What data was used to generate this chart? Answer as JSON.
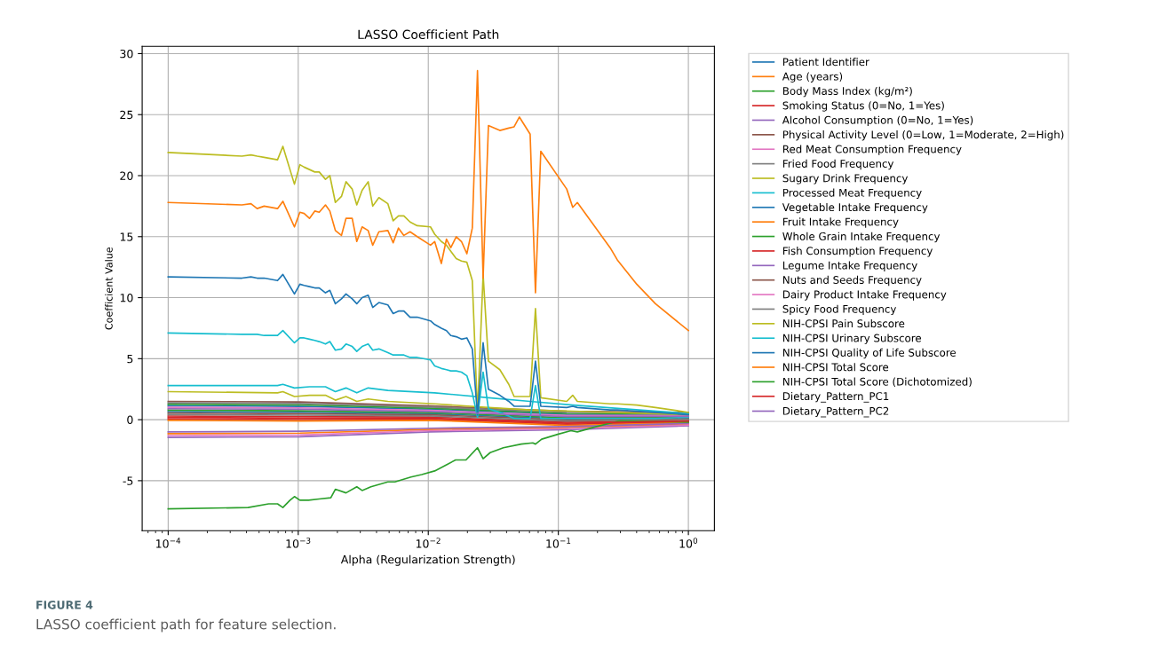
{
  "chart_data": {
    "type": "line",
    "title": "LASSO Coefficient Path",
    "xlabel": "Alpha (Regularization Strength)",
    "ylabel": "Coefficient Value",
    "annotations": [
      "FIGURE 4",
      "LASSO coefficient path for feature selection."
    ],
    "log": "x",
    "grid": true,
    "legend": "right",
    "xlim": [
      6.31e-05,
      1.585
    ],
    "xticks": [
      {
        "value": 0.0001,
        "label": "10$^{−4}$"
      },
      {
        "value": 0.001,
        "label": "10$^{−3}$"
      },
      {
        "value": 0.01,
        "label": "10$^{−2}$"
      },
      {
        "value": 0.1,
        "label": "10$^{−1}$"
      },
      {
        "value": 1,
        "label": "10$^{0}$"
      }
    ],
    "ylim": [
      -9.1,
      30.6
    ],
    "yticks": [
      -5,
      0,
      5,
      10,
      15,
      20,
      25,
      30
    ],
    "x": [
      0.0001,
      0.000369,
      0.000433,
      0.000483,
      0.000547,
      0.000693,
      0.000762,
      0.000935,
      0.00103,
      0.00111,
      0.00122,
      0.00134,
      0.00145,
      0.00162,
      0.00175,
      0.00193,
      0.00215,
      0.00233,
      0.0026,
      0.00282,
      0.0031,
      0.00345,
      0.00374,
      0.00417,
      0.00489,
      0.00537,
      0.0059,
      0.00649,
      0.00724,
      0.00822,
      0.0104,
      0.0112,
      0.0126,
      0.0138,
      0.0149,
      0.0164,
      0.018,
      0.0198,
      0.0218,
      0.0239,
      0.0264,
      0.029,
      0.0355,
      0.0416,
      0.0457,
      0.0502,
      0.0607,
      0.0667,
      0.0733,
      0.116,
      0.129,
      0.14,
      0.25,
      0.284,
      0.401,
      0.558,
      1.0
    ],
    "series": [
      {
        "name": "Patient Identifier",
        "color": "#1f77b4",
        "x": [
          0.0001,
          0.00103,
          0.0104,
          0.116,
          1.0
        ],
        "values": [
          1.14,
          1.09,
          0.85,
          0.43,
          0.4
        ]
      },
      {
        "name": "Age (years)",
        "color": "#ff7f0e",
        "x": [
          0.0001,
          0.00103,
          0.0104,
          0.116,
          1.0
        ],
        "values": [
          -1.15,
          -1.1,
          -0.8,
          -0.65,
          -0.38
        ]
      },
      {
        "name": "Body Mass Index (kg/m²)",
        "color": "#2ca02c",
        "x": [
          0.0001,
          0.00103,
          0.0104,
          0.116,
          1.0
        ],
        "values": [
          1.26,
          1.21,
          0.94,
          0.52,
          0.47
        ]
      },
      {
        "name": "Smoking Status (0=No, 1=Yes)",
        "color": "#d62728",
        "x": [
          0.0001,
          0.00103,
          0.0104,
          0.116,
          1.0
        ],
        "values": [
          0.06,
          0.01,
          0.04,
          -0.38,
          -0.18
        ]
      },
      {
        "name": "Alcohol Consumption (0=No, 1=Yes)",
        "color": "#9467bd",
        "x": [
          0.0001,
          0.00103,
          0.0104,
          0.116,
          1.0
        ],
        "values": [
          -1.45,
          -1.4,
          -1.0,
          -0.83,
          -0.5
        ]
      },
      {
        "name": "Physical Activity Level (0=Low, 1=Moderate, 2=High)",
        "color": "#8c564b",
        "x": [
          0.0001,
          0.00103,
          0.0104,
          0.116,
          1.0
        ],
        "values": [
          1.5,
          1.45,
          1.12,
          0.7,
          0.6
        ]
      },
      {
        "name": "Red Meat Consumption Frequency",
        "color": "#e377c2",
        "x": [
          0.0001,
          0.00103,
          0.0104,
          0.116,
          1.0
        ],
        "values": [
          1.02,
          0.97,
          0.76,
          0.34,
          0.34
        ]
      },
      {
        "name": "Fried Food Frequency",
        "color": "#7f7f7f",
        "x": [
          0.0001,
          0.00103,
          0.0104,
          0.116,
          1.0
        ],
        "values": [
          1.38,
          1.33,
          1.03,
          0.61,
          0.53
        ]
      },
      {
        "name": "Sugary Drink Frequency",
        "color": "#bcbd22",
        "x": [
          0.0001,
          0.000693,
          0.000762,
          0.000935,
          0.00122,
          0.00162,
          0.00193,
          0.00233,
          0.00282,
          0.00345,
          0.00489,
          0.0112,
          0.029,
          0.0607,
          0.129,
          1.0
        ],
        "values": [
          2.3,
          2.2,
          2.3,
          1.9,
          2.0,
          2.0,
          1.6,
          1.9,
          1.5,
          1.7,
          1.5,
          1.3,
          1.0,
          0.8,
          0.7,
          0.4
        ]
      },
      {
        "name": "Processed Meat Frequency",
        "color": "#17becf",
        "x": [
          0.0001,
          0.000693,
          0.000762,
          0.000935,
          0.00122,
          0.00162,
          0.00193,
          0.00233,
          0.00282,
          0.00345,
          0.00489,
          0.0112,
          0.029,
          0.0607,
          0.129,
          1.0
        ],
        "values": [
          2.8,
          2.8,
          2.9,
          2.6,
          2.7,
          2.7,
          2.3,
          2.6,
          2.2,
          2.6,
          2.4,
          2.2,
          1.8,
          1.5,
          1.2,
          0.5
        ]
      },
      {
        "name": "Vegetable Intake Frequency",
        "color": "#1f77b4",
        "x": [
          0.0001,
          0.00103,
          0.0104,
          0.116,
          1.0
        ],
        "values": [
          0.66,
          0.61,
          0.49,
          0.07,
          0.14
        ]
      },
      {
        "name": "Fruit Intake Frequency",
        "color": "#ff7f0e",
        "x": [
          0.0001,
          0.00103,
          0.0104,
          0.116,
          1.0
        ],
        "values": [
          -0.06,
          -0.11,
          -0.05,
          -0.47,
          -0.25
        ]
      },
      {
        "name": "Whole Grain Intake Frequency",
        "color": "#2ca02c",
        "x": [
          0.0001,
          0.00103,
          0.0104,
          0.116,
          1.0
        ],
        "values": [
          0.78,
          0.73,
          0.58,
          0.16,
          0.21
        ]
      },
      {
        "name": "Fish Consumption Frequency",
        "color": "#d62728",
        "x": [
          0.0001,
          0.00103,
          0.0104,
          0.116,
          1.0
        ],
        "values": [
          0.3,
          0.25,
          0.22,
          -0.2,
          -0.05
        ]
      },
      {
        "name": "Legume Intake Frequency",
        "color": "#9467bd",
        "x": [
          0.0001,
          0.00103,
          0.0104,
          0.116,
          1.0
        ],
        "values": [
          -1.0,
          -0.95,
          -0.7,
          -0.56,
          -0.31
        ]
      },
      {
        "name": "Nuts and Seeds Frequency",
        "color": "#8c564b",
        "x": [
          0.0001,
          0.00103,
          0.0104,
          0.116,
          1.0
        ],
        "values": [
          0.54,
          0.49,
          0.4,
          -0.02,
          0.08
        ]
      },
      {
        "name": "Dairy Product Intake Frequency",
        "color": "#e377c2",
        "x": [
          0.0001,
          0.00103,
          0.0104,
          0.116,
          1.0
        ],
        "values": [
          -1.3,
          -1.25,
          -0.9,
          -0.74,
          -0.44
        ]
      },
      {
        "name": "Spicy Food Frequency",
        "color": "#7f7f7f",
        "x": [
          0.0001,
          0.00103,
          0.0104,
          0.116,
          1.0
        ],
        "values": [
          0.42,
          0.37,
          0.31,
          -0.11,
          0.02
        ]
      },
      {
        "name": "NIH-CPSI Pain Subscore",
        "color": "#bcbd22",
        "values": [
          21.9,
          21.6,
          21.7,
          21.6,
          21.5,
          21.3,
          22.4,
          19.3,
          20.9,
          20.7,
          20.5,
          20.3,
          20.3,
          19.7,
          20.0,
          17.8,
          18.3,
          19.5,
          18.9,
          17.6,
          18.8,
          19.5,
          17.5,
          18.2,
          17.7,
          16.3,
          16.7,
          16.7,
          16.2,
          15.9,
          15.8,
          15.2,
          14.6,
          14.3,
          13.8,
          13.2,
          13.0,
          12.9,
          11.4,
          0.5,
          11.9,
          4.8,
          4.1,
          2.9,
          1.9,
          1.9,
          1.9,
          9.1,
          1.8,
          1.5,
          2.0,
          1.5,
          1.3,
          1.3,
          1.2,
          1.0,
          0.6
        ]
      },
      {
        "name": "NIH-CPSI Urinary Subscore",
        "color": "#17becf",
        "values": [
          7.1,
          7.0,
          7.0,
          7.0,
          6.9,
          6.9,
          7.3,
          6.3,
          6.7,
          6.7,
          6.6,
          6.5,
          6.4,
          6.2,
          6.4,
          5.7,
          5.8,
          6.2,
          6.0,
          5.6,
          6.0,
          6.2,
          5.7,
          5.8,
          5.5,
          5.3,
          5.3,
          5.3,
          5.1,
          5.1,
          4.9,
          4.4,
          4.2,
          4.1,
          4.0,
          4.0,
          3.9,
          3.6,
          2.2,
          0.2,
          3.9,
          0.9,
          0.6,
          0.3,
          0.1,
          0.1,
          0.1,
          2.8,
          0.1,
          0.1,
          0.1,
          0.1,
          0.1,
          0.1,
          0.1,
          0.1,
          0.2
        ]
      },
      {
        "name": "NIH-CPSI Quality of Life Subscore",
        "color": "#1f77b4",
        "values": [
          11.7,
          11.6,
          11.7,
          11.6,
          11.6,
          11.4,
          11.9,
          10.3,
          11.1,
          11.0,
          10.9,
          10.8,
          10.8,
          10.4,
          10.6,
          9.5,
          9.9,
          10.3,
          9.9,
          9.5,
          10.0,
          10.2,
          9.2,
          9.6,
          9.4,
          8.7,
          8.9,
          8.9,
          8.4,
          8.4,
          8.1,
          7.8,
          7.5,
          7.3,
          6.9,
          6.8,
          6.6,
          6.7,
          5.8,
          0.4,
          6.3,
          2.5,
          2.0,
          1.5,
          1.1,
          1.1,
          1.1,
          4.8,
          1.1,
          1.0,
          1.1,
          1.0,
          0.8,
          0.8,
          0.7,
          0.6,
          0.4
        ]
      },
      {
        "name": "NIH-CPSI Total Score",
        "color": "#ff7f0e",
        "values": [
          17.8,
          17.6,
          17.7,
          17.3,
          17.5,
          17.3,
          17.9,
          15.8,
          17.0,
          16.9,
          16.5,
          17.1,
          17.0,
          17.6,
          17.1,
          15.5,
          15.1,
          16.5,
          16.5,
          14.6,
          15.8,
          15.5,
          14.3,
          15.4,
          15.5,
          14.5,
          15.7,
          15.1,
          15.4,
          15.0,
          14.3,
          14.6,
          12.8,
          14.8,
          14.1,
          15.0,
          14.6,
          13.6,
          15.7,
          28.6,
          11.6,
          24.1,
          23.7,
          23.9,
          24.0,
          24.8,
          23.4,
          10.4,
          22.0,
          18.9,
          17.4,
          17.8,
          14.1,
          13.1,
          11.1,
          9.5,
          7.3
        ]
      },
      {
        "name": "NIH-CPSI Total Score (Dichotomized)",
        "color": "#2ca02c",
        "x": [
          0.0001,
          0.000412,
          0.000592,
          0.000693,
          0.000762,
          0.000865,
          0.000935,
          0.00103,
          0.0012,
          0.00145,
          0.00178,
          0.00193,
          0.00233,
          0.00282,
          0.0031,
          0.00362,
          0.00489,
          0.00554,
          0.00736,
          0.00889,
          0.0112,
          0.0138,
          0.0162,
          0.0195,
          0.0239,
          0.0264,
          0.0299,
          0.0378,
          0.0518,
          0.0636,
          0.0667,
          0.0744,
          0.0988,
          0.125,
          0.14,
          0.191,
          0.293,
          1.0
        ],
        "values": [
          -7.3,
          -7.2,
          -6.9,
          -6.9,
          -7.2,
          -6.6,
          -6.3,
          -6.6,
          -6.6,
          -6.5,
          -6.4,
          -5.7,
          -6.0,
          -5.5,
          -5.8,
          -5.5,
          -5.1,
          -5.1,
          -4.7,
          -4.5,
          -4.2,
          -3.7,
          -3.3,
          -3.3,
          -2.3,
          -3.2,
          -2.7,
          -2.3,
          -2.0,
          -1.9,
          -2.0,
          -1.6,
          -1.2,
          -0.9,
          -1.0,
          -0.6,
          -0.1,
          -0.2
        ]
      },
      {
        "name": "Dietary_Pattern_PC1",
        "color": "#d62728",
        "x": [
          0.0001,
          0.00103,
          0.0104,
          0.116,
          1.0
        ],
        "values": [
          0.18,
          0.13,
          0.13,
          -0.29,
          -0.12
        ]
      },
      {
        "name": "Dietary_Pattern_PC2",
        "color": "#9467bd",
        "x": [
          0.0001,
          0.00103,
          0.0104,
          0.116,
          1.0
        ],
        "values": [
          0.9,
          0.85,
          0.67,
          0.25,
          0.27
        ]
      }
    ]
  }
}
